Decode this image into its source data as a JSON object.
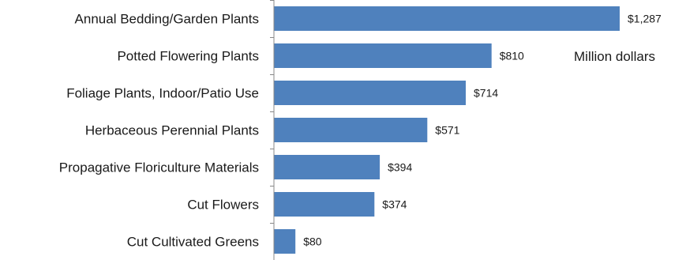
{
  "chart_data": {
    "type": "bar",
    "orientation": "horizontal",
    "categories": [
      "Annual Bedding/Garden Plants",
      "Potted Flowering Plants",
      "Foliage Plants, Indoor/Patio Use",
      "Herbaceous Perennial Plants",
      "Propagative Floriculture Materials",
      "Cut Flowers",
      "Cut Cultivated Greens"
    ],
    "values": [
      1287,
      810,
      714,
      571,
      394,
      374,
      80
    ],
    "value_labels": [
      "$1,287",
      "$810",
      "$714",
      "$571",
      "$394",
      "$374",
      "$80"
    ],
    "unit_label": "Million dollars",
    "bar_color": "#4f81bd",
    "axis_color": "#888888",
    "grid": false,
    "legend": "none"
  }
}
